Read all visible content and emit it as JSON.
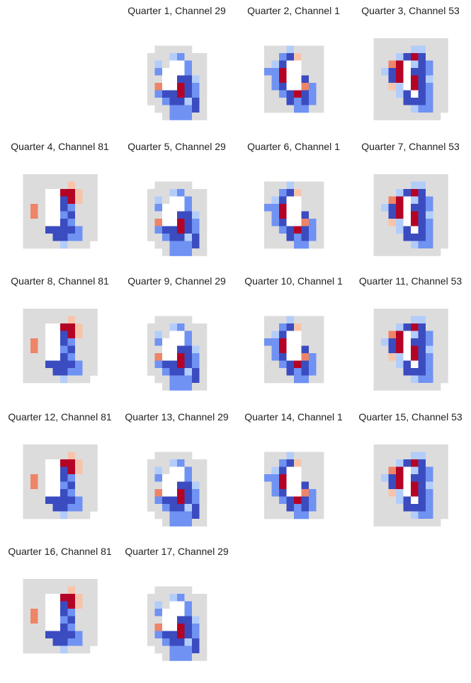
{
  "chart_data": {
    "type": "heatmap",
    "colormap": "coolwarm",
    "colors": {
      "background": "#dddcdc",
      "white": "#ffffff",
      "dark_red": "#b40426",
      "light_red": "#ee8468",
      "pale_red": "#f7c4ab",
      "dark_blue": "#3b4cc0",
      "mid_blue": "#6f92f3",
      "pale_blue": "#b3cdfb"
    },
    "panels": [
      {
        "title": "",
        "empty": true
      },
      {
        "title": "Quarter 1, Channel 29"
      },
      {
        "title": "Quarter 2, Channel 1"
      },
      {
        "title": "Quarter 3, Channel 53"
      },
      {
        "title": "Quarter 4, Channel 81"
      },
      {
        "title": "Quarter 5, Channel 29"
      },
      {
        "title": "Quarter 6, Channel 1"
      },
      {
        "title": "Quarter 7, Channel 53"
      },
      {
        "title": "Quarter 8, Channel 81"
      },
      {
        "title": "Quarter 9, Channel 29"
      },
      {
        "title": "Quarter 10, Channel 1"
      },
      {
        "title": "Quarter 11, Channel 53"
      },
      {
        "title": "Quarter 12, Channel 81"
      },
      {
        "title": "Quarter 13, Channel 29"
      },
      {
        "title": "Quarter 14, Channel 1"
      },
      {
        "title": "Quarter 15, Channel 53"
      },
      {
        "title": "Quarter 16, Channel 81"
      },
      {
        "title": "Quarter 17, Channel 29"
      }
    ]
  }
}
